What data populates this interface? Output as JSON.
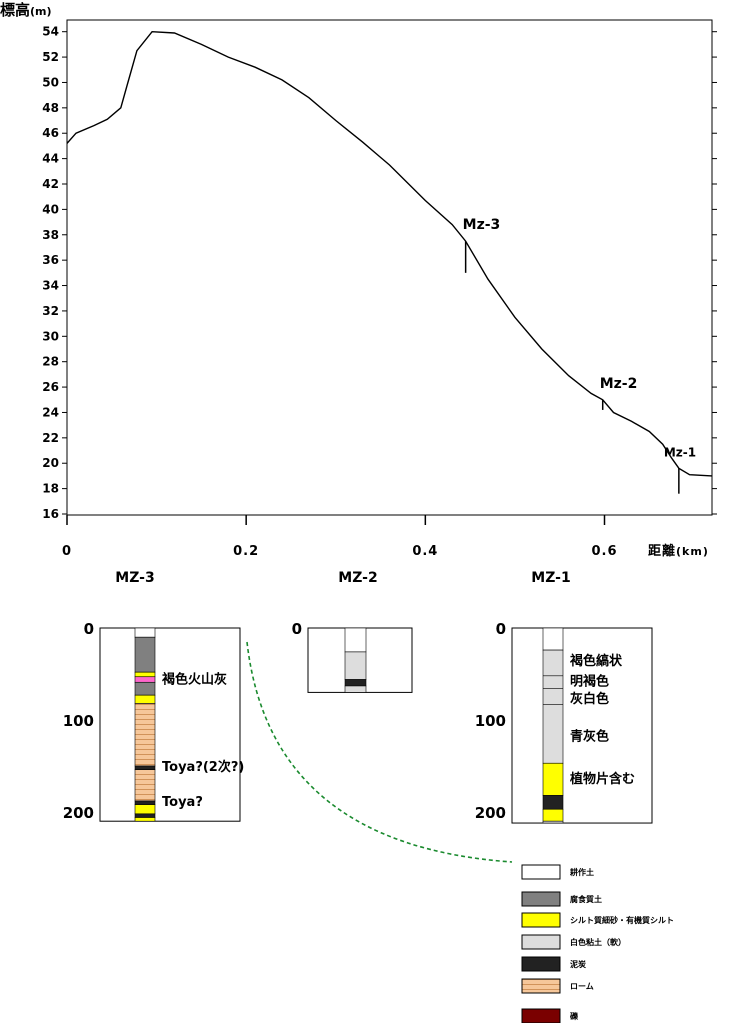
{
  "profile": {
    "ylabel": "標高",
    "ylabel_unit": "(m)",
    "xlabel": "距離",
    "xlabel_unit": "(km)",
    "x_tick_labels": [
      "0",
      "0.2",
      "0.4",
      "0.6"
    ],
    "y_tick_labels": [
      "16",
      "18",
      "20",
      "22",
      "24",
      "26",
      "28",
      "30",
      "32",
      "34",
      "36",
      "38",
      "40",
      "42",
      "44",
      "46",
      "48",
      "50",
      "52",
      "54"
    ],
    "site_labels": [
      {
        "name": "Mz-3",
        "x": 0.445,
        "y": 37.5,
        "x_tick_to": 35.0
      },
      {
        "name": "Mz-2",
        "x": 0.598,
        "y": 25.0,
        "x_tick_to": 24.2
      },
      {
        "name": "Mz-1",
        "x": 0.683,
        "y": 19.6,
        "x_tick_to": 17.6
      }
    ]
  },
  "chart_data": {
    "type": "line",
    "xlabel": "距離 (km)",
    "ylabel": "標高 (m)",
    "xlim": [
      0,
      0.72
    ],
    "ylim": [
      16,
      55
    ],
    "x_ticks": [
      0,
      0.2,
      0.4,
      0.6
    ],
    "y_ticks": [
      16,
      18,
      20,
      22,
      24,
      26,
      28,
      30,
      32,
      34,
      36,
      38,
      40,
      42,
      44,
      46,
      48,
      50,
      52,
      54
    ],
    "series": [
      {
        "x": [
          0,
          0.01,
          0.03,
          0.045,
          0.06,
          0.068,
          0.078,
          0.095,
          0.12,
          0.15,
          0.18,
          0.21,
          0.24,
          0.27,
          0.3,
          0.33,
          0.36,
          0.4,
          0.43,
          0.445,
          0.47,
          0.5,
          0.53,
          0.56,
          0.585,
          0.598,
          0.61,
          0.63,
          0.65,
          0.665,
          0.675,
          0.683,
          0.695,
          0.72
        ],
        "y": [
          45.2,
          46.0,
          46.6,
          47.1,
          48.0,
          50.0,
          52.5,
          54.0,
          53.9,
          53.0,
          52.0,
          51.2,
          50.2,
          48.8,
          47.0,
          45.3,
          43.5,
          40.7,
          38.8,
          37.5,
          34.5,
          31.5,
          29.0,
          26.9,
          25.5,
          25.0,
          24.0,
          23.3,
          22.5,
          21.5,
          20.4,
          19.6,
          19.1,
          19.0
        ]
      }
    ]
  },
  "columns": [
    {
      "name": "MZ-3",
      "depth_ticks": [
        "0",
        "100",
        "200"
      ],
      "max_depth": 210,
      "layers": [
        {
          "from": 0,
          "to": 10,
          "fill": "#ffffff"
        },
        {
          "from": 10,
          "to": 48,
          "fill": "#808080"
        },
        {
          "from": 48,
          "to": 53,
          "fill": "#ffff00"
        },
        {
          "from": 53,
          "to": 59,
          "fill": "#ff66cc"
        },
        {
          "from": 59,
          "to": 73,
          "fill": "#808080"
        },
        {
          "from": 73,
          "to": 82,
          "fill": "#ffff00"
        },
        {
          "from": 82,
          "to": 150,
          "fill": "loam"
        },
        {
          "from": 150,
          "to": 154,
          "fill": "#222222"
        },
        {
          "from": 154,
          "to": 188,
          "fill": "loam"
        },
        {
          "from": 188,
          "to": 192,
          "fill": "#222222"
        },
        {
          "from": 192,
          "to": 202,
          "fill": "#ffff00"
        },
        {
          "from": 202,
          "to": 206,
          "fill": "#222222"
        },
        {
          "from": 206,
          "to": 210,
          "fill": "#ffff00"
        }
      ],
      "notes": [
        {
          "text": "褐色火山灰",
          "depth": 55
        },
        {
          "text": "Toya?(2次?)",
          "depth": 150
        },
        {
          "text": "Toya?",
          "depth": 188
        }
      ]
    },
    {
      "name": "MZ-2",
      "depth_ticks": [
        "0"
      ],
      "max_depth": 70,
      "layers": [
        {
          "from": 0,
          "to": 26,
          "fill": "#ffffff"
        },
        {
          "from": 26,
          "to": 56,
          "fill": "#dddddd"
        },
        {
          "from": 56,
          "to": 63,
          "fill": "#222222"
        },
        {
          "from": 63,
          "to": 70,
          "fill": "#dddddd"
        }
      ],
      "notes": []
    },
    {
      "name": "MZ-1",
      "depth_ticks": [
        "0",
        "100",
        "200"
      ],
      "max_depth": 212,
      "layers": [
        {
          "from": 0,
          "to": 24,
          "fill": "#ffffff"
        },
        {
          "from": 24,
          "to": 147,
          "fill": "#dddddd"
        },
        {
          "from": 147,
          "to": 182,
          "fill": "#ffff00"
        },
        {
          "from": 182,
          "to": 197,
          "fill": "#222222"
        },
        {
          "from": 197,
          "to": 210,
          "fill": "#ffff00"
        },
        {
          "from": 210,
          "to": 212,
          "fill": "#dddddd"
        }
      ],
      "boundaries": [
        52,
        66,
        83
      ],
      "notes": [
        {
          "text": "褐色縞状",
          "depth": 35
        },
        {
          "text": "明褐色",
          "depth": 57
        },
        {
          "text": "灰白色",
          "depth": 76
        },
        {
          "text": "青灰色",
          "depth": 117
        },
        {
          "text": "植物片含む",
          "depth": 163
        }
      ]
    }
  ],
  "legend": [
    {
      "label": "耕作土",
      "fill": "#ffffff"
    },
    {
      "label": "腐食質土",
      "fill": "#808080"
    },
    {
      "label": "シルト質細砂・有機質シルト",
      "fill": "#ffff00"
    },
    {
      "label": "白色粘土（軟）",
      "fill": "#dddddd"
    },
    {
      "label": "泥炭",
      "fill": "#222222"
    },
    {
      "label": "ローム",
      "fill": "loam"
    },
    {
      "label": "礫",
      "fill": "#7a0000"
    }
  ],
  "colors": {
    "connector": "#1a8a2e",
    "loam": "#f6c79a",
    "loam_lines": "#c8864a"
  }
}
